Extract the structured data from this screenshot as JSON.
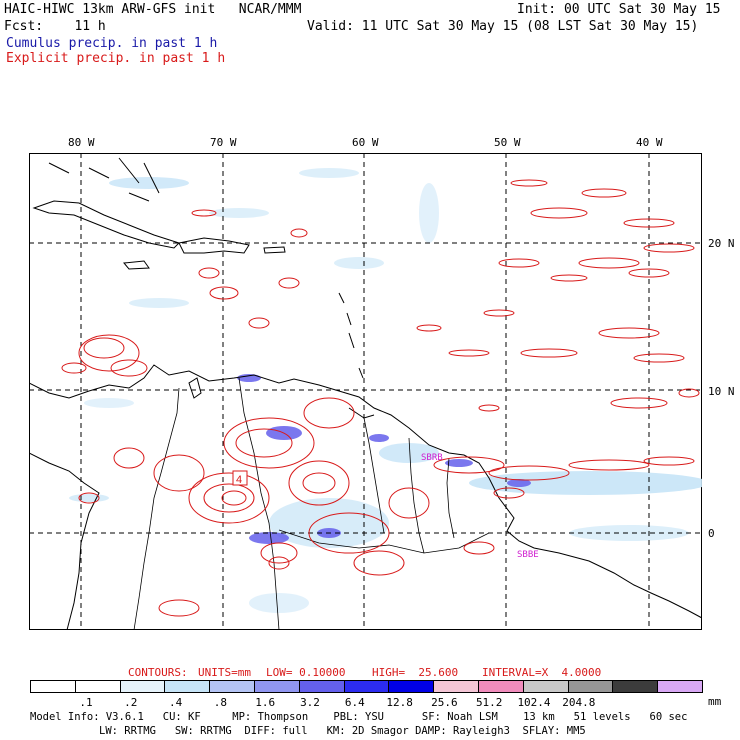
{
  "header": {
    "line1_left": "HAIC-HIWC 13km ARW-GFS init   NCAR/MMM",
    "line1_right": "Init: 00 UTC Sat 30 May 15",
    "line2_left": "Fcst:    11 h",
    "line2_right": "Valid: 11 UTC Sat 30 May 15 (08 LST Sat 30 May 15)",
    "line3": "Cumulus precip. in past 1 h",
    "line4": "Explicit precip. in past 1 h"
  },
  "colors": {
    "cumulus": "#1a1aa8",
    "explicit": "#d81a1a",
    "grid": "#000000",
    "station": "#d020d0"
  },
  "map": {
    "lon_labels": [
      "80 W",
      "70 W",
      "60 W",
      "50 W",
      "40 W"
    ],
    "lat_labels": [
      "20 N",
      "10 N",
      "0"
    ],
    "stations": [
      "SBRB",
      "SBBE"
    ],
    "box_label": "4"
  },
  "contour_line": {
    "label": "CONTOURS:",
    "units": "UNITS=mm",
    "low": "LOW= 0.10000",
    "high": "HIGH=  25.600",
    "interval": "INTERVAL=X  4.0000"
  },
  "colorbar": {
    "labels": [
      ".1",
      ".2",
      ".4",
      ".8",
      "1.6",
      "3.2",
      "6.4",
      "12.8",
      "25.6",
      "51.2",
      "102.4",
      "204.8"
    ],
    "unit": "mm",
    "colors": [
      "#ffffff",
      "#ffffff",
      "#e6f3fb",
      "#c6e4f7",
      "#b4c4f4",
      "#9096f0",
      "#6460ec",
      "#2c2cf0",
      "#0000e6",
      "#f4c6d6",
      "#f08cbc",
      "#c8c8c8",
      "#969696",
      "#3c3c3c",
      "#d8a8f4"
    ]
  },
  "footer": {
    "line1": "Model Info: V3.6.1   CU: KF     MP: Thompson    PBL: YSU      SF: Noah LSM    13 km   51 levels   60 sec",
    "line2": "LW: RRTMG   SW: RRTMG  DIFF: full   KM: 2D Smagor DAMP: Rayleigh3  SFLAY: MM5"
  }
}
